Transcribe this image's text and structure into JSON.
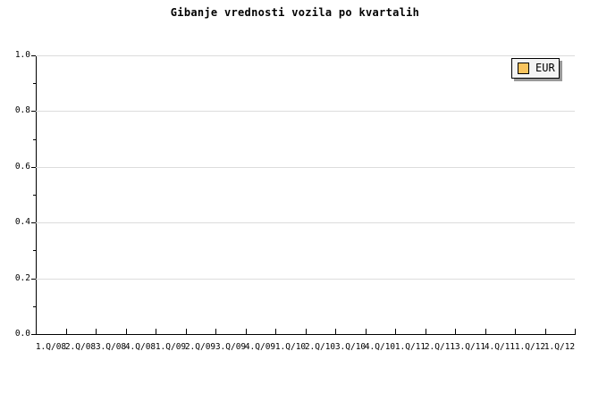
{
  "chart_data": {
    "type": "line",
    "title": "Gibanje vrednosti vozila po kvartalih",
    "x_categories": [
      "1.Q/08",
      "2.Q/08",
      "3.Q/08",
      "4.Q/08",
      "1.Q/09",
      "2.Q/09",
      "3.Q/09",
      "4.Q/09",
      "1.Q/10",
      "2.Q/10",
      "3.Q/10",
      "4.Q/10",
      "1.Q/11",
      "2.Q/11",
      "3.Q/11",
      "4.Q/11",
      "1.Q/12",
      "1.Q/12"
    ],
    "xlabel": "",
    "ylabel": "",
    "ylim": [
      0.0,
      1.0
    ],
    "ytick_labels": [
      "0.0",
      "0.2",
      "0.4",
      "0.6",
      "0.8",
      "1.0"
    ],
    "y_minor_tick_step": 0.1,
    "grid": {
      "horizontal_major": true,
      "vertical": false,
      "color": "#dcdcdc"
    },
    "series": [
      {
        "name": "EUR",
        "color": "#f9c45e",
        "values": []
      }
    ],
    "legend": {
      "position": "top-right",
      "entries": [
        {
          "label": "EUR",
          "swatch_color": "#f9c45e"
        }
      ]
    },
    "colors": {
      "axis": "#000000",
      "background": "#ffffff",
      "legend_background": "#f4f4f4",
      "legend_shadow": "#999999"
    }
  }
}
